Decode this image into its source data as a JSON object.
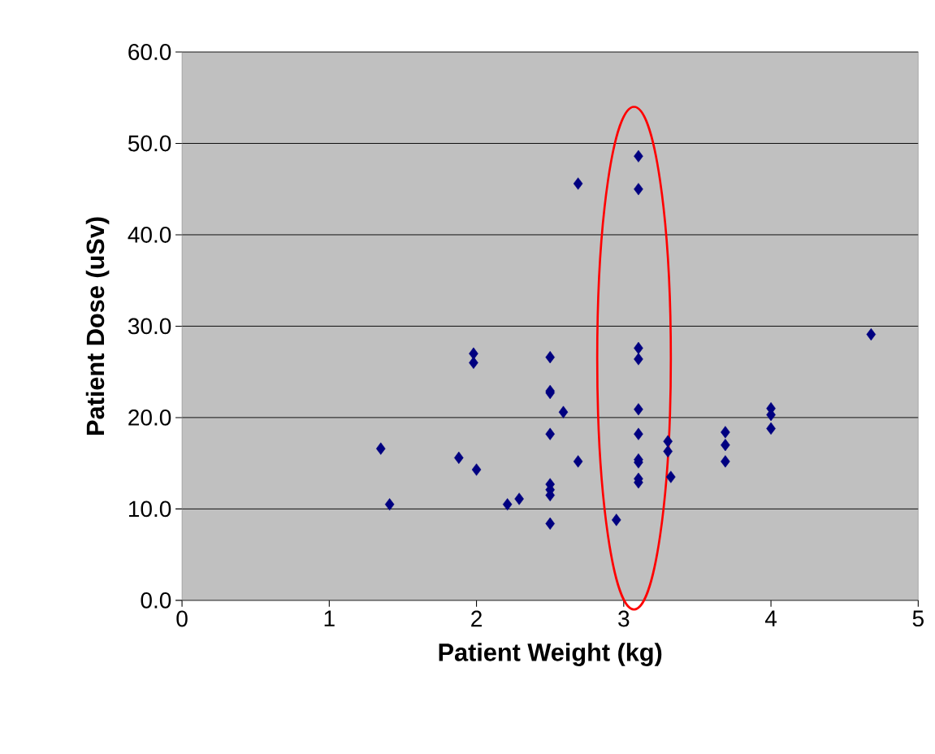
{
  "chart_data": {
    "type": "scatter",
    "xlabel": "Patient Weight (kg)",
    "ylabel": "Patient Dose (uSv)",
    "x": [
      1.35,
      1.41,
      1.88,
      2.0,
      1.98,
      1.98,
      2.21,
      2.29,
      2.5,
      2.5,
      2.5,
      2.5,
      2.5,
      2.5,
      2.5,
      2.5,
      2.59,
      2.69,
      2.69,
      2.95,
      3.1,
      3.1,
      3.1,
      3.1,
      3.1,
      3.1,
      3.1,
      3.1,
      3.1,
      3.1,
      3.3,
      3.3,
      3.32,
      3.69,
      3.69,
      3.69,
      4.0,
      4.0,
      4.0,
      4.68
    ],
    "series": [
      {
        "color": "#000080",
        "values": [
          16.6,
          10.5,
          15.6,
          14.3,
          27.0,
          26.0,
          10.5,
          11.1,
          26.6,
          22.9,
          22.7,
          18.2,
          12.7,
          12.1,
          11.5,
          8.4,
          20.6,
          45.6,
          15.2,
          8.8,
          48.6,
          45.0,
          27.6,
          26.4,
          20.9,
          18.2,
          15.4,
          15.1,
          13.3,
          12.9,
          17.4,
          16.3,
          13.5,
          18.4,
          17.0,
          15.2,
          21.0,
          20.3,
          18.8,
          29.1
        ]
      }
    ],
    "xlim": [
      0,
      5
    ],
    "xticks": [
      0,
      1,
      2,
      3,
      4,
      5
    ],
    "ylim": [
      0,
      60
    ],
    "yticks": [
      {
        "value": 0,
        "label": "0.0"
      },
      {
        "value": 10,
        "label": "10.0"
      },
      {
        "value": 20,
        "label": "20.0"
      },
      {
        "value": 30,
        "label": "30.0"
      },
      {
        "value": 40,
        "label": "40.0"
      },
      {
        "value": 50,
        "label": "50.0"
      },
      {
        "value": 60,
        "label": "60.0"
      }
    ],
    "grid": "y",
    "marker": "diamond"
  }
}
